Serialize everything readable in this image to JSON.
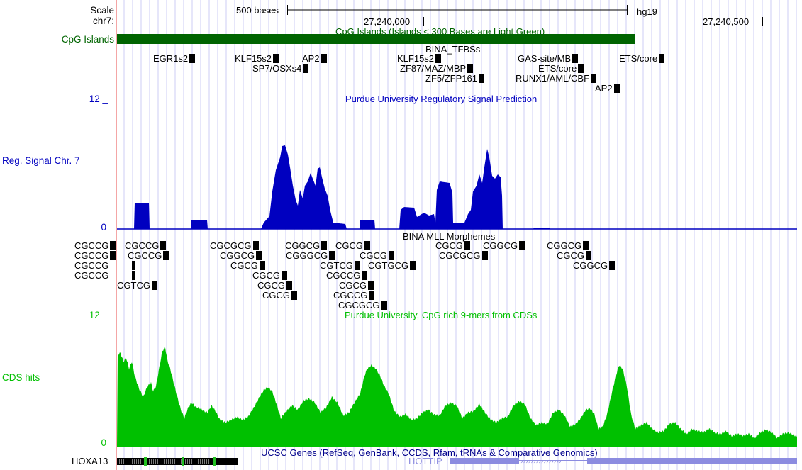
{
  "ruler": {
    "scale_label": "Scale",
    "chrom_label": "chr7:",
    "scale_bar_label": "500 bases",
    "assembly": "hg19",
    "pos1": "27,240,000",
    "pos2": "27,240,500"
  },
  "tracks": {
    "cpg": {
      "name": "CpG Islands",
      "title": "CpG Islands (Islands < 300 Bases are Light Green)",
      "color": "#006400"
    },
    "tfbs": {
      "title": "BINA_TFBSs",
      "items": [
        {
          "label": "EGR1s2"
        },
        {
          "label": "KLF15s2"
        },
        {
          "label": "AP2"
        },
        {
          "label": "SP7/OSXs4"
        },
        {
          "label": "KLF15s2"
        },
        {
          "label": "ZF87/MAZ/MBP"
        },
        {
          "label": "ZF5/ZFP161"
        },
        {
          "label": "GAS-site/MB"
        },
        {
          "label": "ETS/core"
        },
        {
          "label": "RUNX1/AML/CBF"
        },
        {
          "label": "AP2"
        },
        {
          "label": "ETS/core"
        }
      ]
    },
    "reg": {
      "name": "Reg. Signal Chr. 7",
      "title": "Purdue University Regulatory Signal Prediction",
      "ymax": "12 _",
      "ymin": "0",
      "color": "#0000c0"
    },
    "mll": {
      "title": "BINA MLL Morphemes",
      "items": [
        {
          "label": "CGCCG"
        },
        {
          "label": "CGCCG"
        },
        {
          "label": "CGCCG"
        },
        {
          "label": "CGCCG"
        },
        {
          "label": "CGCCG"
        },
        {
          "label": "CGCCG"
        },
        {
          "label": "CGTCG"
        },
        {
          "label": "CGCGCG"
        },
        {
          "label": "CGGCG"
        },
        {
          "label": "CGCG"
        },
        {
          "label": "CGCG"
        },
        {
          "label": "CGCG"
        },
        {
          "label": "CGCG"
        },
        {
          "label": "CGGCG"
        },
        {
          "label": "CGGGCG"
        },
        {
          "label": "CGCG"
        },
        {
          "label": "CGCG"
        },
        {
          "label": "CGTCG"
        },
        {
          "label": "CGCCG"
        },
        {
          "label": "CGCG"
        },
        {
          "label": "CGCCG"
        },
        {
          "label": "CGCGCG"
        },
        {
          "label": "CGTGCG"
        },
        {
          "label": "CGCG"
        },
        {
          "label": "CGCGCG"
        },
        {
          "label": "CGGCG"
        },
        {
          "label": "CGGCG"
        },
        {
          "label": "CGCG"
        },
        {
          "label": "CGGCG"
        }
      ]
    },
    "cds": {
      "name": "CDS hits",
      "title": "Purdue University, CpG rich 9-mers from CDSs",
      "ymax": "12 _",
      "ymin": "0",
      "color": "#00c000"
    },
    "genes": {
      "title": "UCSC Genes (RefSeq, GenBank, CCDS, Rfam, tRNAs & Comparative Genomics)",
      "gene1": "HOXA13",
      "gene2": "HOTTIP"
    }
  }
}
